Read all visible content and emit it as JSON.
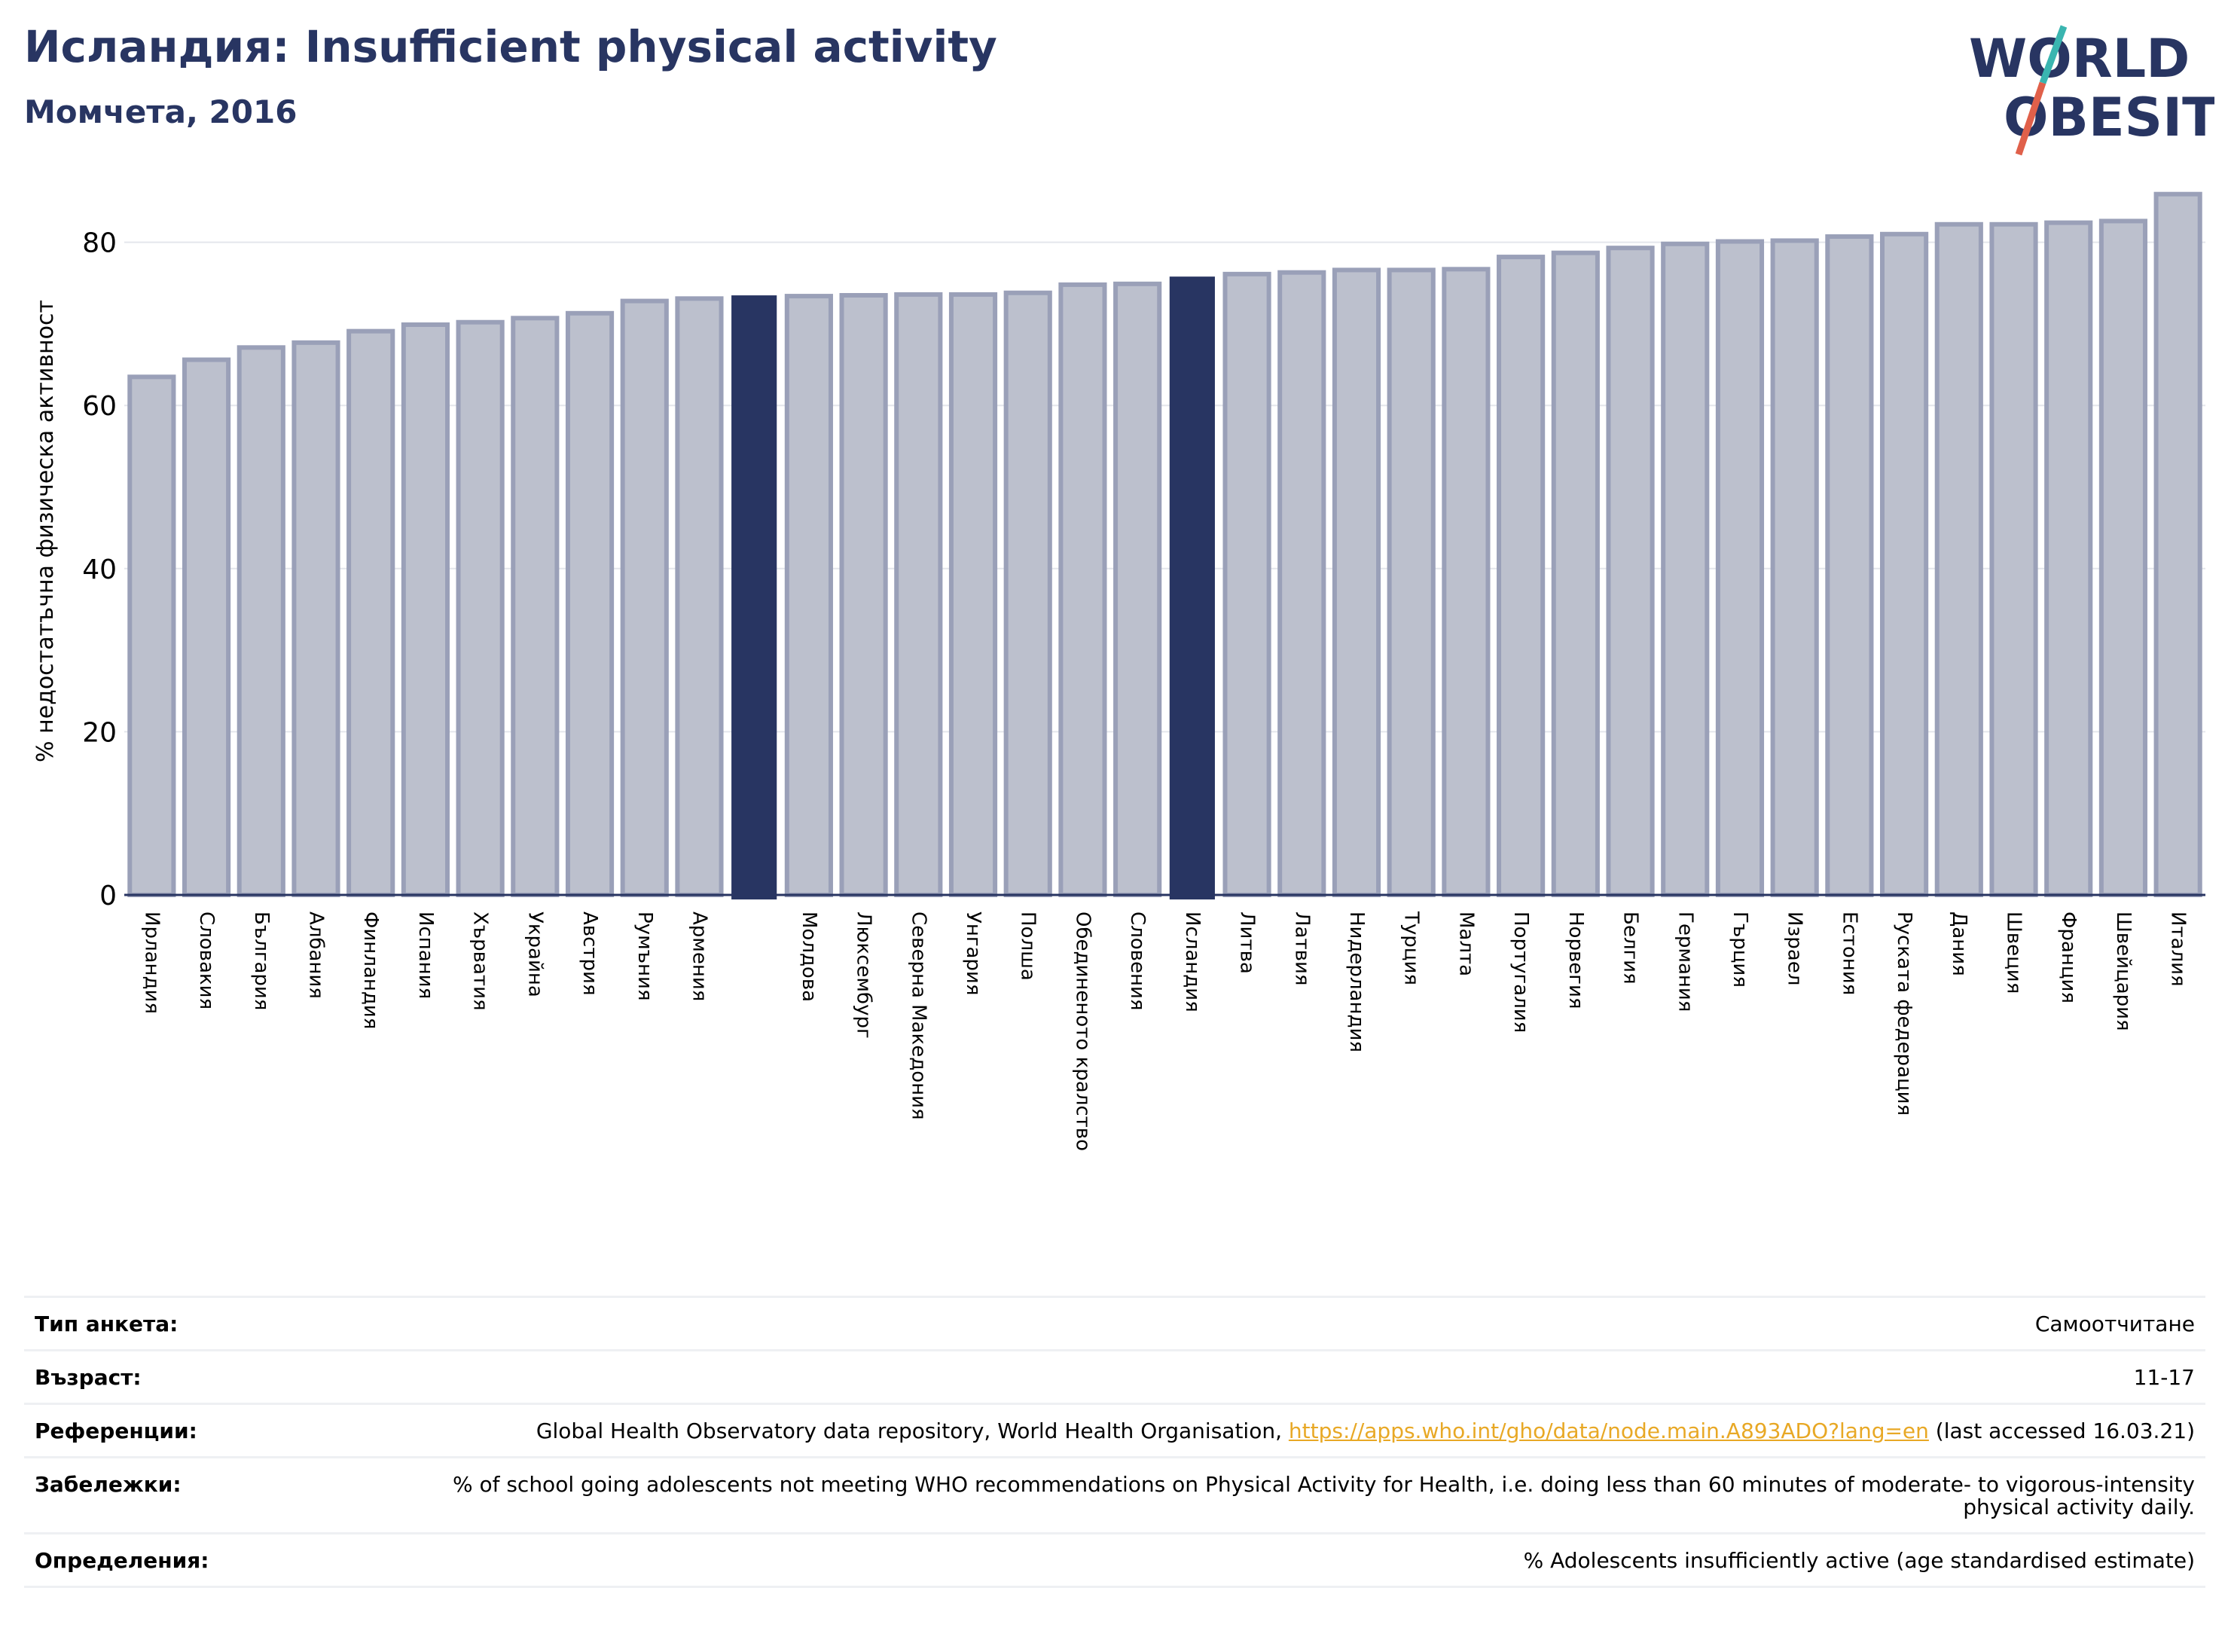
{
  "header": {
    "title": "Исландия: Insufficient physical activity",
    "subtitle": "Момчета, 2016"
  },
  "logo": {
    "line1": "WORLD",
    "line2": "OBESITY"
  },
  "colors": {
    "bar_default": "#bcc0cd",
    "bar_default_edge": "#9aa0b8",
    "bar_highlight": "#283562",
    "title": "#283562",
    "logo_text": "#283562",
    "logo_slash_top": "#3ab5b0",
    "logo_slash_bottom": "#e0604a",
    "link": "#e8a825"
  },
  "chart_data": {
    "type": "bar",
    "title": "",
    "xlabel": "",
    "ylabel": "% недостатъчна физическа активност",
    "ylim": [
      0,
      88
    ],
    "yticks": [
      0,
      20,
      40,
      60,
      80
    ],
    "grid": true,
    "categories": [
      "Ирландия",
      "Словакия",
      "България",
      "Албания",
      "Финландия",
      "Испания",
      "Хърватия",
      "Украйна",
      "Австрия",
      "Румъния",
      "Армения",
      "",
      "Молдова",
      "Люксембург",
      "Северна Македония",
      "Унгария",
      "Полша",
      "Обединеното кралство",
      "Словения",
      "Исландия",
      "Литва",
      "Латвия",
      "Нидерландия",
      "Турция",
      "Малта",
      "Португалия",
      "Норвегия",
      "Белгия",
      "Германия",
      "Гърция",
      "Израел",
      "Естония",
      "Руската федерация",
      "Дания",
      "Швеция",
      "Франция",
      "Швейцария",
      "Италия"
    ],
    "values": [
      63.5,
      65.6,
      67.1,
      67.7,
      69.1,
      69.9,
      70.2,
      70.7,
      71.3,
      72.8,
      73.1,
      73.4,
      73.4,
      73.5,
      73.6,
      73.6,
      73.8,
      74.8,
      74.9,
      75.7,
      76.1,
      76.3,
      76.6,
      76.6,
      76.7,
      78.2,
      78.7,
      79.3,
      79.8,
      80.1,
      80.2,
      80.7,
      81.0,
      82.2,
      82.2,
      82.4,
      82.6,
      85.9
    ],
    "highlighted": [
      11,
      19
    ]
  },
  "info": {
    "rows": [
      {
        "label": "Тип анкета:",
        "value": "Самоотчитане"
      },
      {
        "label": "Възраст:",
        "value": "11-17"
      },
      {
        "label": "Референции:",
        "value_prefix": "Global Health Observatory data repository, World Health Organisation, ",
        "link": "https://apps.who.int/gho/data/node.main.A893ADO?lang=en",
        "value_suffix": " (last accessed 16.03.21)"
      },
      {
        "label": "Забележки:",
        "value": "% of school going adolescents not meeting WHO recommendations on Physical Activity for Health, i.e. doing less than 60 minutes of moderate- to vigorous-intensity physical activity daily."
      },
      {
        "label": "Определения:",
        "value": "% Adolescents insufficiently active (age standardised estimate)"
      }
    ]
  }
}
